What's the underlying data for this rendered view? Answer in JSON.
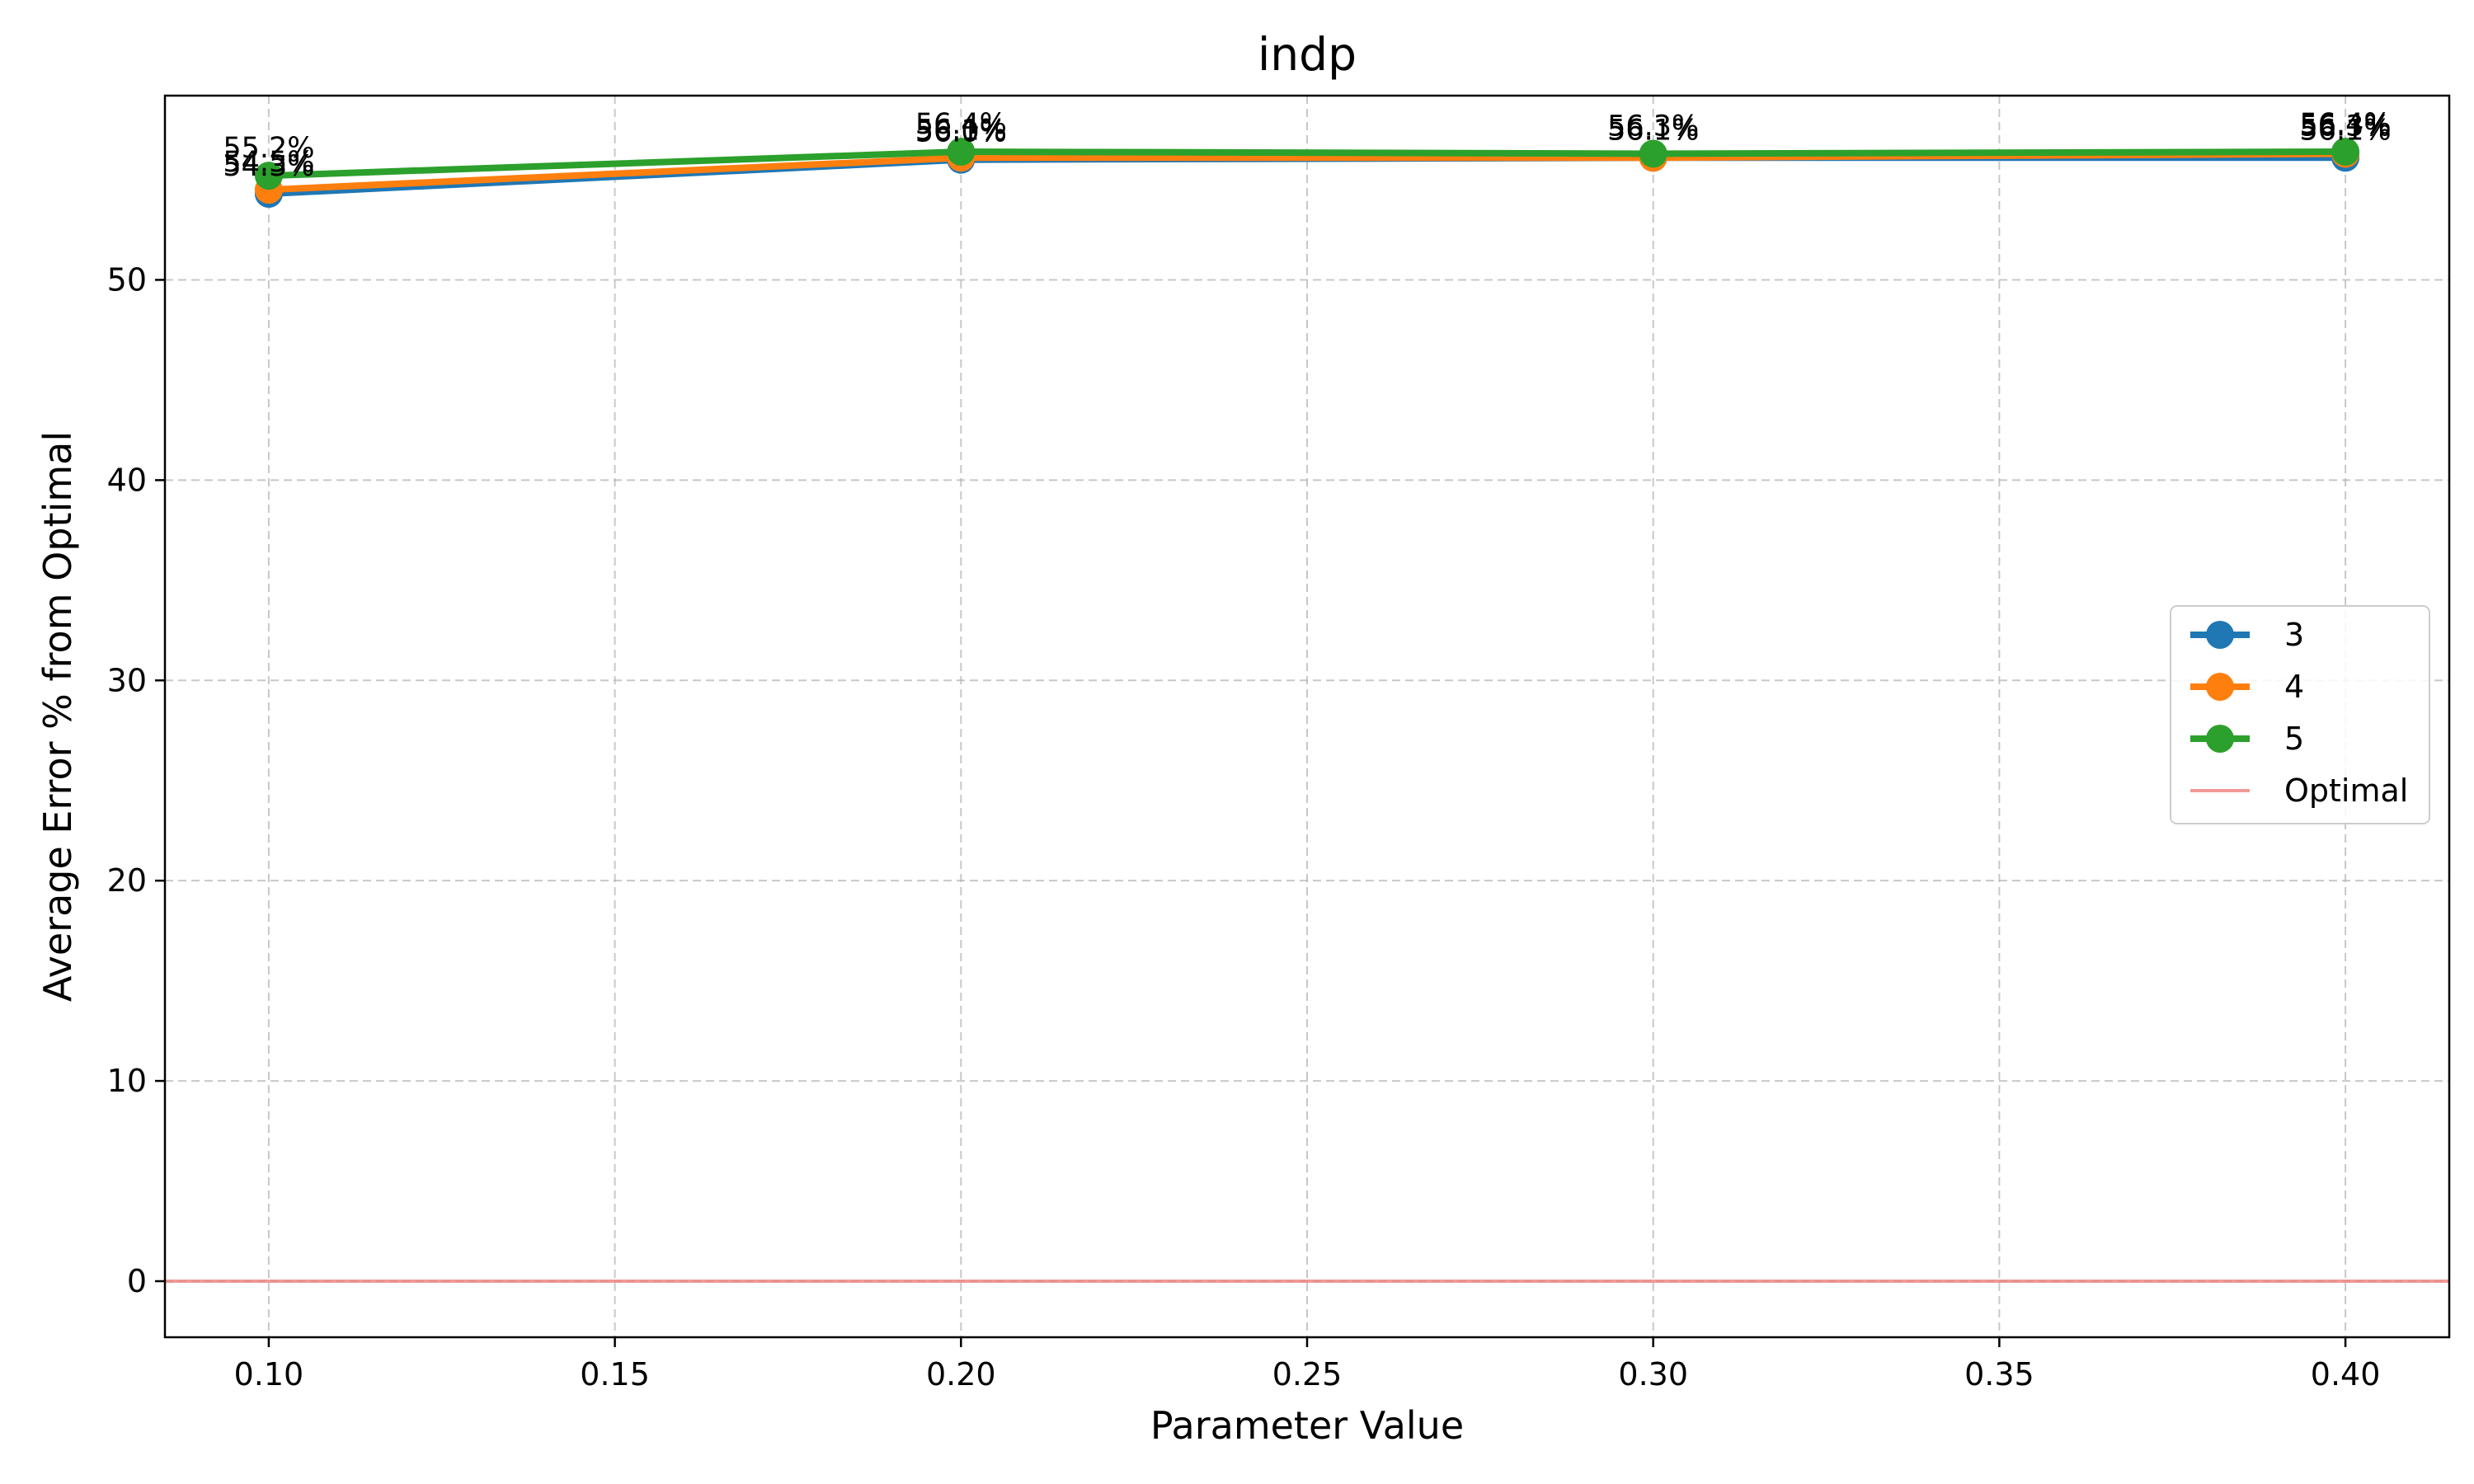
{
  "chart_data": {
    "type": "line",
    "title": "indp",
    "xlabel": "Parameter Value",
    "ylabel": "Average Error % from Optimal",
    "xlim": [
      0.085,
      0.415
    ],
    "ylim": [
      -2.8,
      59.2
    ],
    "xticks": [
      0.1,
      0.15,
      0.2,
      0.25,
      0.3,
      0.35,
      0.4
    ],
    "xtick_labels": [
      "0.10",
      "0.15",
      "0.20",
      "0.25",
      "0.30",
      "0.35",
      "0.40"
    ],
    "yticks": [
      0,
      10,
      20,
      30,
      40,
      50
    ],
    "ytick_labels": [
      "0",
      "10",
      "20",
      "30",
      "40",
      "50"
    ],
    "grid": true,
    "legend_position": "center-right",
    "x": [
      0.1,
      0.2,
      0.3,
      0.4
    ],
    "series": [
      {
        "name": "3",
        "color": "#1f77b4",
        "values": [
          54.3,
          56.0,
          56.1,
          56.1
        ],
        "labels": [
          "54.3%",
          "56.0%",
          "56.1%",
          "56.1%"
        ]
      },
      {
        "name": "4",
        "color": "#ff7f0e",
        "values": [
          54.5,
          56.1,
          56.1,
          56.3
        ],
        "labels": [
          "54.5%",
          "56.1%",
          "56.1%",
          "56.3%"
        ]
      },
      {
        "name": "5",
        "color": "#2ca02c",
        "values": [
          55.2,
          56.4,
          56.3,
          56.4
        ],
        "labels": [
          "55.2%",
          "56.4%",
          "56.3%",
          "56.4%"
        ]
      }
    ],
    "reference_line": {
      "name": "Optimal",
      "value": 0,
      "color": "#f08080"
    }
  }
}
